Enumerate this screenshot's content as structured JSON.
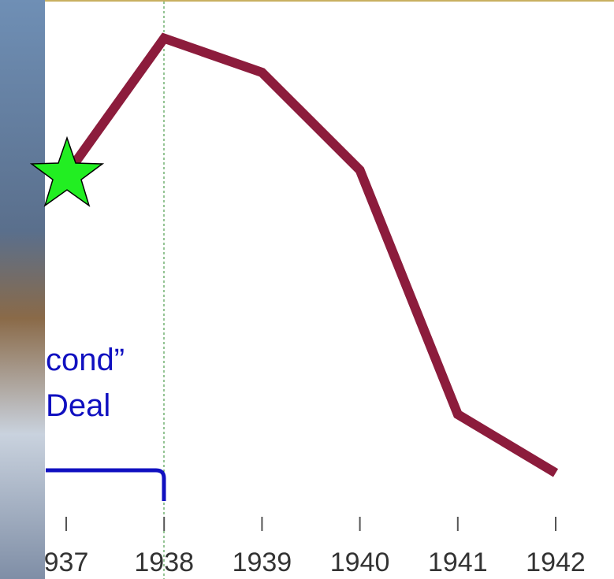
{
  "chart_data": {
    "type": "line",
    "categories": [
      "937",
      "1938",
      "1939",
      "1940",
      "1941",
      "1942"
    ],
    "series": [
      {
        "color": "#8c1c3c",
        "values": [
          69,
          97,
          90,
          70,
          20,
          8
        ]
      }
    ],
    "ylim": [
      0,
      100
    ],
    "annotations": [
      "cond”",
      "Deal"
    ],
    "marker_color": "#22ee22",
    "bracket_color": "#1010c0"
  }
}
